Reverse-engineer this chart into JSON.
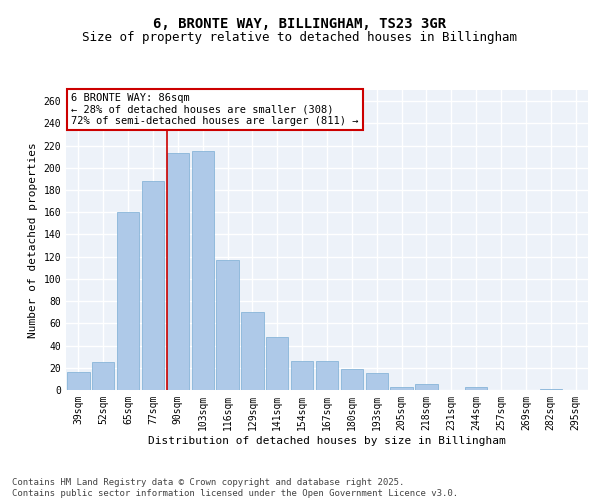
{
  "title": "6, BRONTE WAY, BILLINGHAM, TS23 3GR",
  "subtitle": "Size of property relative to detached houses in Billingham",
  "xlabel": "Distribution of detached houses by size in Billingham",
  "ylabel": "Number of detached properties",
  "categories": [
    "39sqm",
    "52sqm",
    "65sqm",
    "77sqm",
    "90sqm",
    "103sqm",
    "116sqm",
    "129sqm",
    "141sqm",
    "154sqm",
    "167sqm",
    "180sqm",
    "193sqm",
    "205sqm",
    "218sqm",
    "231sqm",
    "244sqm",
    "257sqm",
    "269sqm",
    "282sqm",
    "295sqm"
  ],
  "values": [
    16,
    25,
    160,
    188,
    213,
    215,
    117,
    70,
    48,
    26,
    26,
    19,
    15,
    3,
    5,
    0,
    3,
    0,
    0,
    1,
    0
  ],
  "bar_color": "#aec9e8",
  "bar_edge_color": "#7aadd4",
  "highlight_line_index": 4,
  "highlight_line_color": "#cc0000",
  "annotation_text": "6 BRONTE WAY: 86sqm\n← 28% of detached houses are smaller (308)\n72% of semi-detached houses are larger (811) →",
  "annotation_box_color": "#ffffff",
  "annotation_box_edge_color": "#cc0000",
  "ylim": [
    0,
    270
  ],
  "yticks": [
    0,
    20,
    40,
    60,
    80,
    100,
    120,
    140,
    160,
    180,
    200,
    220,
    240,
    260
  ],
  "background_color": "#edf2f9",
  "grid_color": "#ffffff",
  "footer_text": "Contains HM Land Registry data © Crown copyright and database right 2025.\nContains public sector information licensed under the Open Government Licence v3.0.",
  "title_fontsize": 10,
  "subtitle_fontsize": 9,
  "axis_label_fontsize": 8,
  "tick_fontsize": 7,
  "annotation_fontsize": 7.5,
  "footer_fontsize": 6.5
}
